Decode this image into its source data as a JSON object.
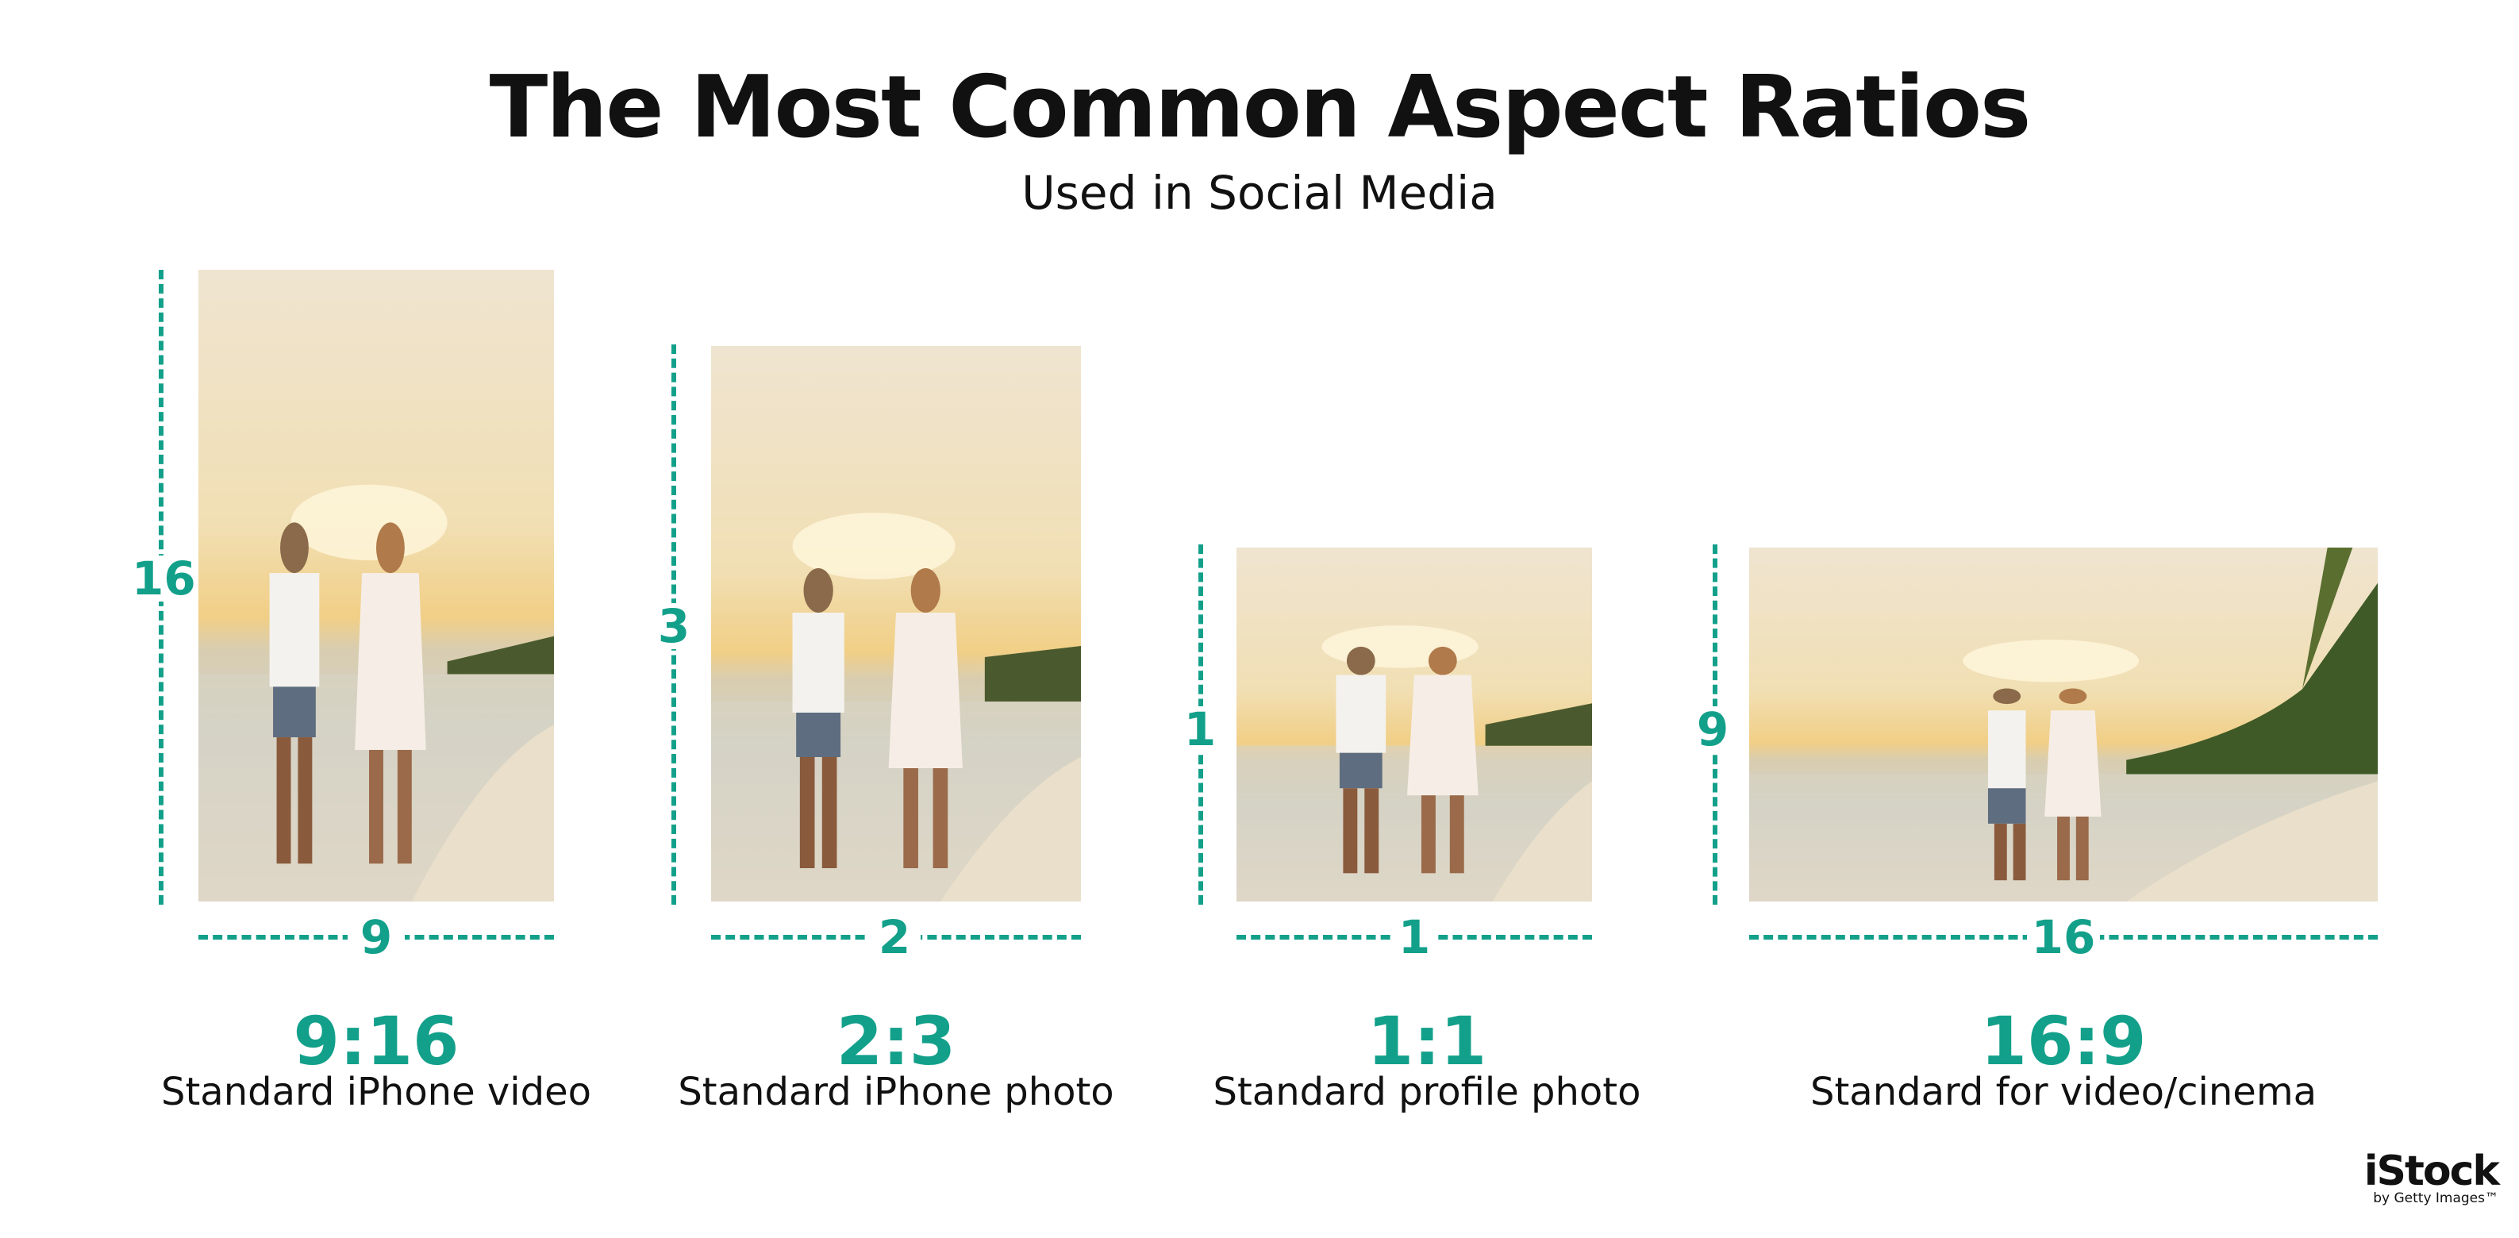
{
  "header": {
    "title": "The Most Common Aspect Ratios",
    "subtitle": "Used in Social Media"
  },
  "cards": [
    {
      "height_label": "16",
      "width_label": "9",
      "ratio": "9:16",
      "description": "Standard iPhone video"
    },
    {
      "height_label": "3",
      "width_label": "2",
      "ratio": "2:3",
      "description": "Standard iPhone photo"
    },
    {
      "height_label": "1",
      "width_label": "1",
      "ratio": "1:1",
      "description": "Standard profile photo"
    },
    {
      "height_label": "9",
      "width_label": "16",
      "ratio": "16:9",
      "description": "Standard for video/cinema"
    }
  ],
  "logo": {
    "brand": "iStock",
    "tagline": "by Getty Images™"
  },
  "colors": {
    "accent": "#13a08a",
    "text": "#111111",
    "background": "#ffffff"
  }
}
